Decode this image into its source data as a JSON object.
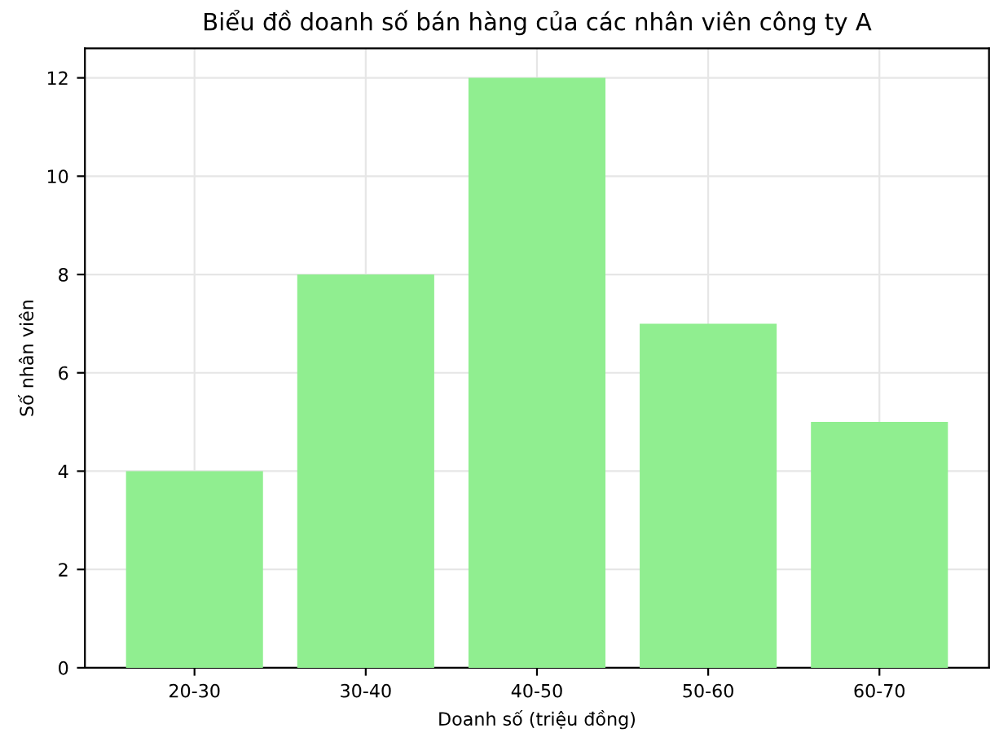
{
  "chart_data": {
    "type": "bar",
    "title": "Biểu đồ doanh số bán hàng của các nhân viên công ty A",
    "xlabel": "Doanh số (triệu đồng)",
    "ylabel": "Số nhân viên",
    "categories": [
      "20-30",
      "30-40",
      "40-50",
      "50-60",
      "60-70"
    ],
    "values": [
      4,
      8,
      12,
      7,
      5
    ],
    "color": "#90ee90",
    "ylim": [
      0,
      12.6
    ],
    "yticks": [
      0,
      2,
      4,
      6,
      8,
      10,
      12
    ],
    "grid": true
  }
}
